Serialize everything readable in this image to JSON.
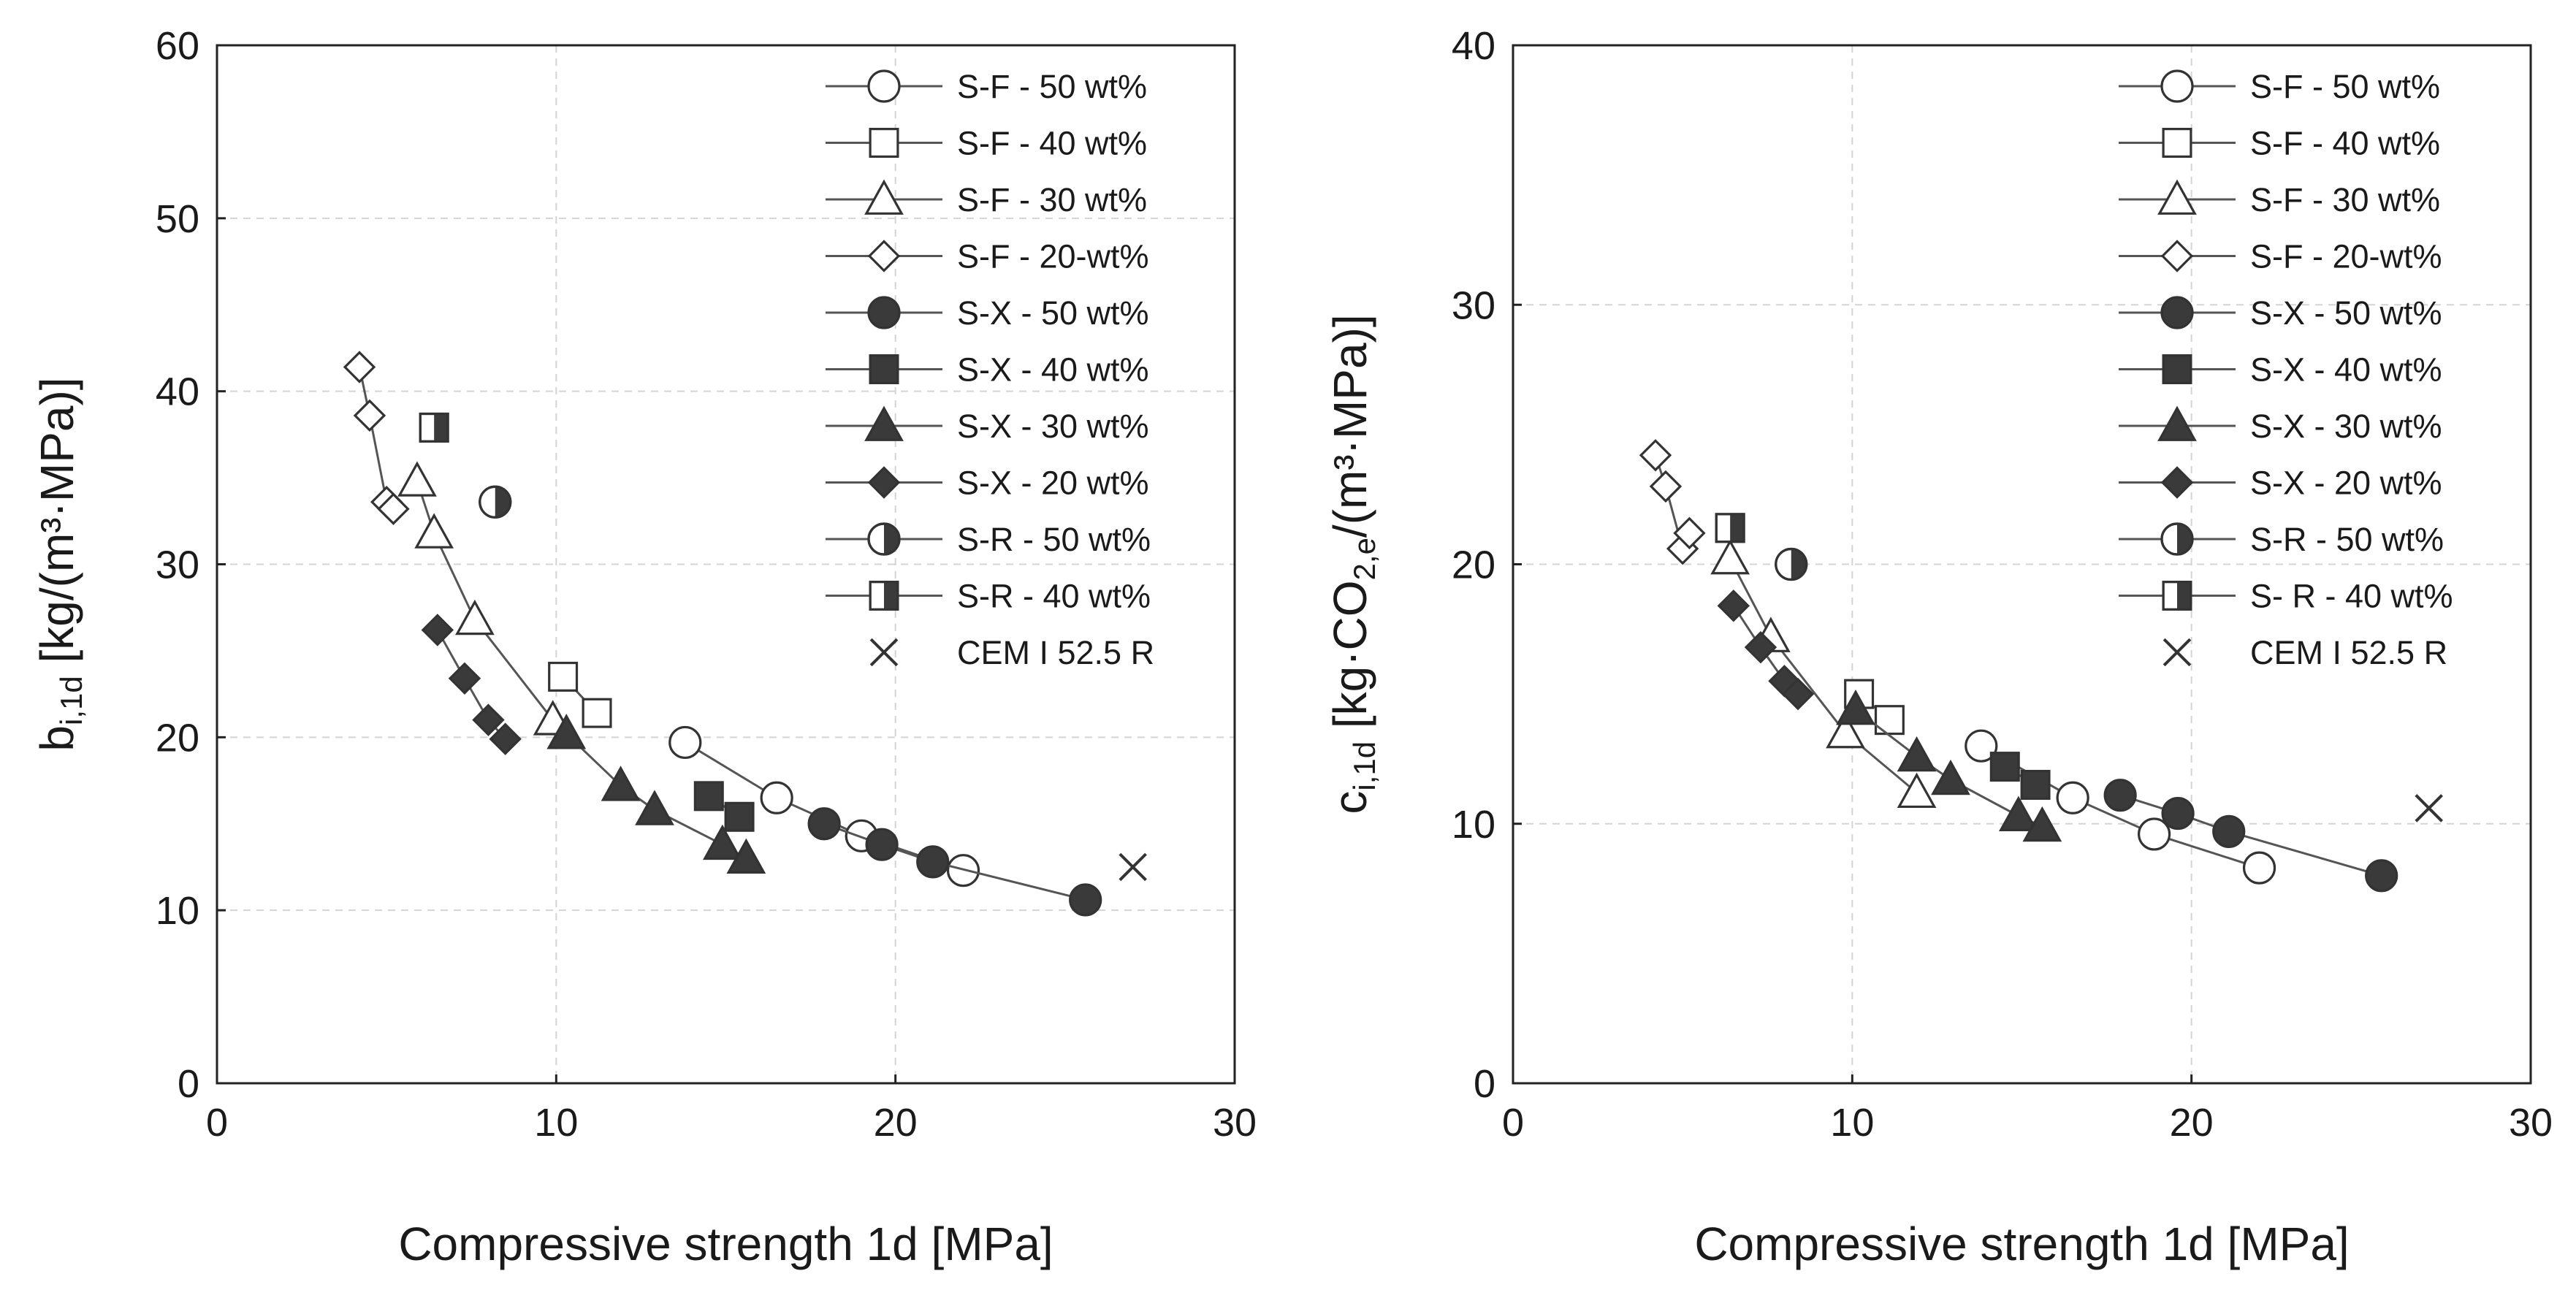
{
  "chart_data": [
    {
      "type": "scatter",
      "xlabel": "Compressive strength 1d [MPa]",
      "ylabel": "b",
      "ylabel_sub": "i,1d",
      "ylabel_rest": " [kg/(m³·MPa)]",
      "xlim": [
        0,
        30
      ],
      "ylim": [
        0,
        60
      ],
      "xticks": [
        "0",
        "10",
        "20",
        "30"
      ],
      "yticks": [
        "0",
        "10",
        "20",
        "30",
        "40",
        "50",
        "60"
      ],
      "grid": true,
      "legend_position": "top-right",
      "series": [
        {
          "name": "S-F - 50 wt%",
          "marker": "circle",
          "fill": "open",
          "line": true,
          "points": [
            [
              13.8,
              19.7
            ],
            [
              16.5,
              16.5
            ],
            [
              19.0,
              14.3
            ],
            [
              22.0,
              12.3
            ]
          ]
        },
        {
          "name": "S-F - 40 wt%",
          "marker": "square",
          "fill": "open",
          "line": true,
          "points": [
            [
              10.2,
              23.5
            ],
            [
              11.2,
              21.4
            ]
          ]
        },
        {
          "name": "S-F - 30 wt%",
          "marker": "triangle",
          "fill": "open",
          "line": true,
          "points": [
            [
              5.9,
              34.8
            ],
            [
              6.4,
              31.8
            ],
            [
              7.6,
              26.8
            ],
            [
              9.9,
              21.0
            ]
          ]
        },
        {
          "name": "S-F - 20-wt%",
          "marker": "diamond",
          "fill": "open",
          "line": true,
          "points": [
            [
              4.2,
              41.4
            ],
            [
              4.5,
              38.6
            ],
            [
              5.0,
              33.6
            ],
            [
              5.2,
              33.2
            ]
          ]
        },
        {
          "name": "S-X - 50 wt%",
          "marker": "circle",
          "fill": "filled",
          "line": true,
          "points": [
            [
              17.9,
              15.0
            ],
            [
              19.6,
              13.8
            ],
            [
              21.1,
              12.8
            ],
            [
              25.6,
              10.6
            ]
          ]
        },
        {
          "name": "S-X - 40 wt%",
          "marker": "square",
          "fill": "filled",
          "line": true,
          "points": [
            [
              14.5,
              16.6
            ],
            [
              15.4,
              15.4
            ]
          ]
        },
        {
          "name": "S-X - 30 wt%",
          "marker": "triangle",
          "fill": "filled",
          "line": true,
          "points": [
            [
              10.3,
              20.2
            ],
            [
              11.9,
              17.2
            ],
            [
              12.9,
              15.8
            ],
            [
              14.9,
              13.8
            ],
            [
              15.6,
              13.0
            ]
          ]
        },
        {
          "name": "S-X - 20 wt%",
          "marker": "diamond",
          "fill": "filled",
          "line": true,
          "points": [
            [
              6.5,
              26.2
            ],
            [
              7.3,
              23.4
            ],
            [
              8.0,
              21.0
            ],
            [
              8.5,
              19.9
            ]
          ]
        },
        {
          "name": "S-R - 50 wt%",
          "marker": "circle",
          "fill": "half",
          "line": false,
          "points": [
            [
              8.2,
              33.6
            ]
          ]
        },
        {
          "name": "S-R - 40 wt%",
          "marker": "square",
          "fill": "half",
          "line": false,
          "points": [
            [
              6.4,
              37.9
            ]
          ]
        },
        {
          "name": "CEM I 52.5 R",
          "marker": "cross",
          "fill": "none",
          "line": false,
          "points": [
            [
              27.0,
              12.5
            ]
          ]
        }
      ]
    },
    {
      "type": "scatter",
      "xlabel": "Compressive strength 1d [MPa]",
      "ylabel": "c",
      "ylabel_sub": "i,1d",
      "ylabel_rest": " [kg·CO",
      "ylabel_sub2": "2,e",
      "ylabel_rest2": "/(m³·MPa)]",
      "xlim": [
        0,
        30
      ],
      "ylim": [
        0,
        40
      ],
      "xticks": [
        "0",
        "10",
        "20",
        "30"
      ],
      "yticks": [
        "0",
        "10",
        "20",
        "30",
        "40"
      ],
      "grid": true,
      "legend_position": "top-right",
      "series": [
        {
          "name": "S-F - 50 wt%",
          "marker": "circle",
          "fill": "open",
          "line": true,
          "points": [
            [
              13.8,
              13.0
            ],
            [
              16.5,
              11.0
            ],
            [
              18.9,
              9.6
            ],
            [
              22.0,
              8.3
            ]
          ]
        },
        {
          "name": "S-F - 40 wt%",
          "marker": "square",
          "fill": "open",
          "line": true,
          "points": [
            [
              10.2,
              15.0
            ],
            [
              11.1,
              14.0
            ]
          ]
        },
        {
          "name": "S-F - 30 wt%",
          "marker": "triangle",
          "fill": "open",
          "line": true,
          "points": [
            [
              6.4,
              20.2
            ],
            [
              7.6,
              17.2
            ],
            [
              9.8,
              13.5
            ],
            [
              11.9,
              11.2
            ]
          ]
        },
        {
          "name": "S-F - 20-wt%",
          "marker": "diamond",
          "fill": "open",
          "line": true,
          "points": [
            [
              4.2,
              24.2
            ],
            [
              4.5,
              23.0
            ],
            [
              5.0,
              20.6
            ],
            [
              5.2,
              21.2
            ]
          ]
        },
        {
          "name": "S-X - 50 wt%",
          "marker": "circle",
          "fill": "filled",
          "line": true,
          "points": [
            [
              17.9,
              11.1
            ],
            [
              19.6,
              10.4
            ],
            [
              21.1,
              9.7
            ],
            [
              25.6,
              8.0
            ]
          ]
        },
        {
          "name": "S-X - 40 wt%",
          "marker": "square",
          "fill": "filled",
          "line": true,
          "points": [
            [
              14.5,
              12.2
            ],
            [
              15.4,
              11.5
            ]
          ]
        },
        {
          "name": "S-X - 30 wt%",
          "marker": "triangle",
          "fill": "filled",
          "line": true,
          "points": [
            [
              10.1,
              14.4
            ],
            [
              11.9,
              12.6
            ],
            [
              12.9,
              11.7
            ],
            [
              14.9,
              10.3
            ],
            [
              15.6,
              9.9
            ]
          ]
        },
        {
          "name": "S-X - 20 wt%",
          "marker": "diamond",
          "fill": "filled",
          "line": true,
          "points": [
            [
              6.5,
              18.4
            ],
            [
              7.3,
              16.8
            ],
            [
              8.0,
              15.5
            ],
            [
              8.4,
              15.0
            ]
          ]
        },
        {
          "name": "S-R - 50 wt%",
          "marker": "circle",
          "fill": "half",
          "line": false,
          "points": [
            [
              8.2,
              20.0
            ]
          ]
        },
        {
          "name": "S- R - 40 wt%",
          "marker": "square",
          "fill": "half",
          "line": false,
          "points": [
            [
              6.4,
              21.4
            ]
          ]
        },
        {
          "name": "CEM I 52.5 R",
          "marker": "cross",
          "fill": "none",
          "line": false,
          "points": [
            [
              27.0,
              10.6
            ]
          ]
        }
      ]
    }
  ]
}
